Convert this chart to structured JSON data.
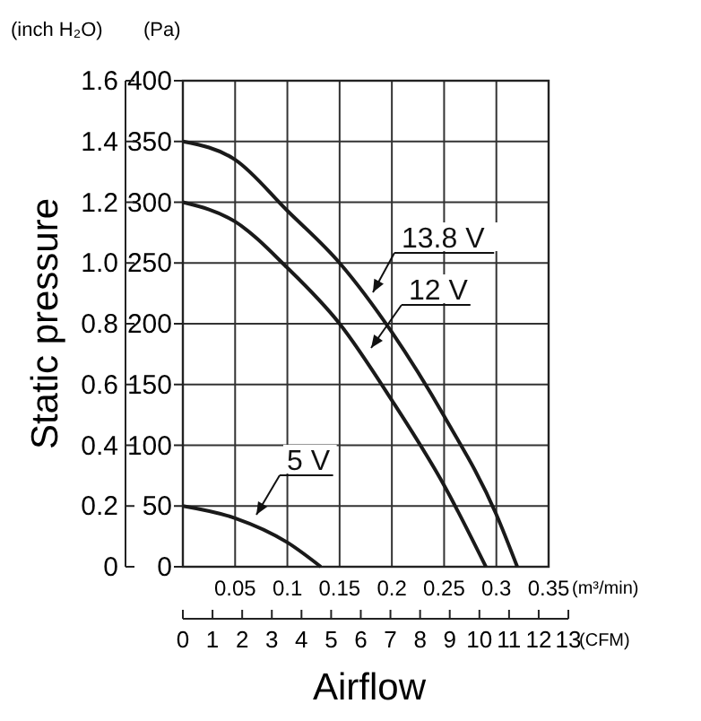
{
  "chart_data": {
    "type": "line",
    "xlabel": "Airflow",
    "y2label": "Static pressure",
    "annotations": [
      "(Pa)",
      "(m³/min)",
      "(CFM)",
      "(inch H₂O)"
    ],
    "series": [
      {
        "name": "13.8 V",
        "color": "#1a1a1a",
        "x": [
          0,
          0.05,
          0.1,
          0.15,
          0.2,
          0.25,
          0.3,
          0.32
        ],
        "values": [
          350,
          335,
          293,
          250,
          193,
          124,
          43,
          0
        ]
      },
      {
        "name": "12 V",
        "color": "#1a1a1a",
        "x": [
          0,
          0.05,
          0.1,
          0.15,
          0.2,
          0.25,
          0.29
        ],
        "values": [
          300,
          284,
          246,
          200,
          137,
          67,
          0
        ]
      },
      {
        "name": "5 V",
        "color": "#1a1a1a",
        "x": [
          0,
          0.05,
          0.1,
          0.132
        ],
        "values": [
          50,
          40,
          20,
          0
        ]
      }
    ],
    "xlim": [
      0,
      0.35
    ],
    "xticks": [
      0.05,
      0.1,
      0.15,
      0.2,
      0.25,
      0.3,
      0.35
    ],
    "ylim": [
      0,
      400
    ],
    "yticks": [
      0,
      50,
      100,
      150,
      200,
      250,
      300,
      350,
      400
    ],
    "y2lim": [
      0,
      1.6
    ],
    "y2ticks": [
      {
        "value": 0,
        "label": "0"
      },
      0.2,
      0.4,
      0.6,
      0.8,
      {
        "value": 1,
        "label": "1.0"
      },
      1.2,
      1.4,
      1.6
    ],
    "x2lim": [
      0,
      13
    ],
    "x2ticks": [
      0,
      1,
      2,
      3,
      4,
      5,
      6,
      7,
      8,
      9,
      10,
      11,
      12,
      13
    ],
    "grid": true,
    "marker": "none",
    "line_style": "solid"
  }
}
